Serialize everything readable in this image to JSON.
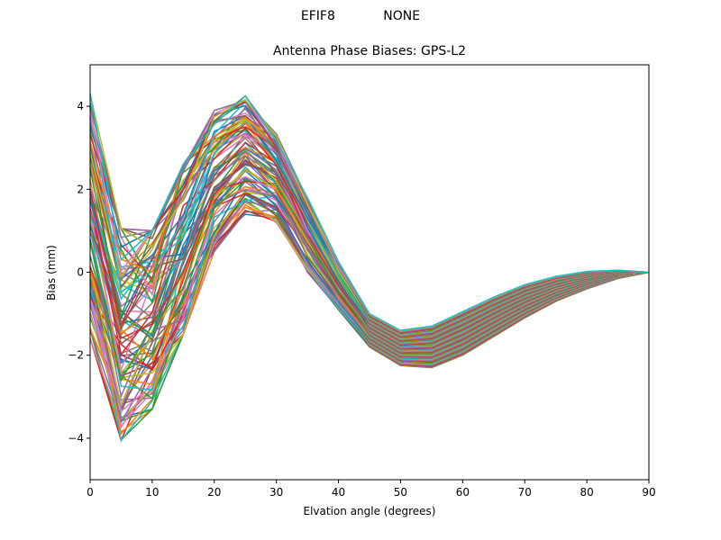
{
  "figure": {
    "suptitle_left": "EFIF8",
    "suptitle_right": "NONE",
    "suptitle": "EFIF8            NONE"
  },
  "chart_data": {
    "type": "line",
    "title": "Antenna Phase Biases: GPS-L2",
    "xlabel": "Elvation angle (degrees)",
    "ylabel": "Bias (mm)",
    "xlim": [
      0,
      90
    ],
    "ylim": [
      -5,
      5
    ],
    "xticks": [
      0,
      10,
      20,
      30,
      40,
      50,
      60,
      70,
      80,
      90
    ],
    "yticks": [
      -4,
      -2,
      0,
      2,
      4
    ],
    "grid": false,
    "legend": null,
    "x": [
      0,
      5,
      10,
      15,
      20,
      25,
      30,
      35,
      40,
      45,
      50,
      55,
      60,
      65,
      70,
      75,
      80,
      85,
      90
    ],
    "envelope": {
      "upper": [
        4.3,
        1.05,
        1.0,
        2.6,
        3.9,
        4.25,
        3.35,
        1.8,
        0.25,
        -1.0,
        -1.4,
        -1.3,
        -0.95,
        -0.6,
        -0.3,
        -0.1,
        0.02,
        0.05,
        0.0
      ],
      "lower": [
        -1.6,
        -4.05,
        -3.3,
        -1.5,
        0.5,
        1.4,
        1.2,
        0.0,
        -0.9,
        -1.8,
        -2.25,
        -2.3,
        -2.0,
        -1.55,
        -1.1,
        -0.7,
        -0.4,
        -0.15,
        0.0
      ]
    },
    "series_count_estimate": 90,
    "color_cycle": [
      "#1f77b4",
      "#ff7f0e",
      "#2ca02c",
      "#d62728",
      "#9467bd",
      "#8c564b",
      "#e377c2",
      "#7f7f7f",
      "#bcbd22",
      "#17becf"
    ],
    "series_note": "Many overlapping per-satellite/antenna curves following the envelope shape; individual series not distinguishable"
  }
}
